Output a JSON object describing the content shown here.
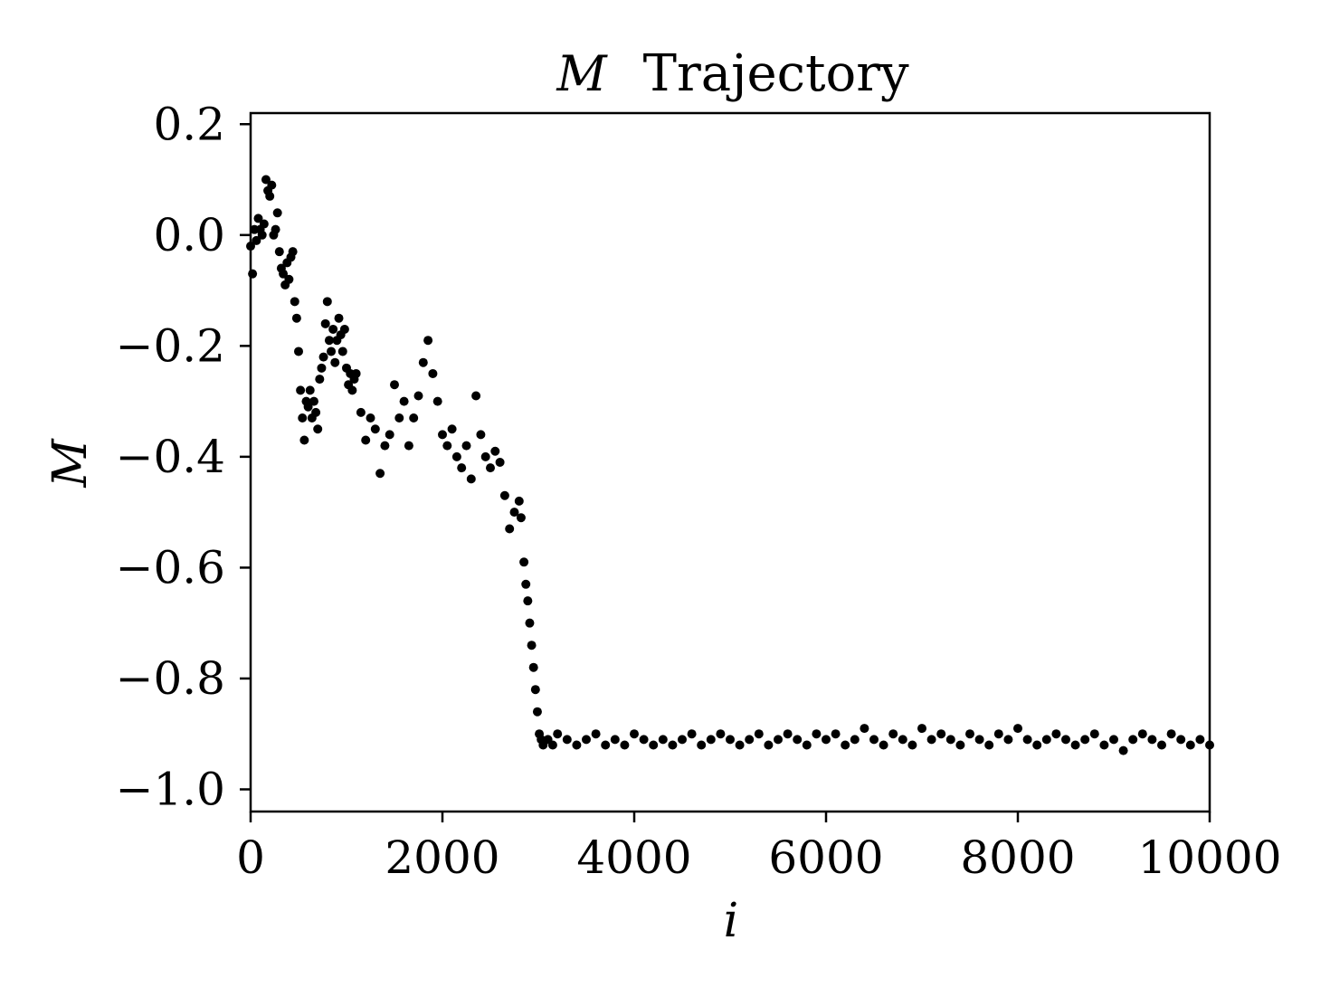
{
  "chart_data": {
    "type": "scatter",
    "title_math": "M",
    "title_text": "Trajectory",
    "xlabel": "i",
    "ylabel": "M",
    "xlim": [
      0,
      10000
    ],
    "ylim": [
      -1.04,
      0.22
    ],
    "xticks": [
      0,
      2000,
      4000,
      6000,
      8000,
      10000
    ],
    "xtick_labels": [
      "0",
      "2000",
      "4000",
      "6000",
      "8000",
      "10000"
    ],
    "yticks": [
      0.2,
      0.0,
      -0.2,
      -0.4,
      -0.6,
      -0.8,
      -1.0
    ],
    "ytick_labels": [
      "0.2",
      "0.0",
      "−0.2",
      "−0.4",
      "−0.6",
      "−0.8",
      "−1.0"
    ],
    "marker_color": "#000000",
    "grid": false,
    "legend": "none",
    "points": [
      [
        0,
        -0.02
      ],
      [
        20,
        -0.07
      ],
      [
        40,
        0.01
      ],
      [
        60,
        -0.01
      ],
      [
        80,
        0.03
      ],
      [
        100,
        0.01
      ],
      [
        120,
        0.0
      ],
      [
        140,
        0.02
      ],
      [
        160,
        0.1
      ],
      [
        180,
        0.08
      ],
      [
        200,
        0.07
      ],
      [
        220,
        0.09
      ],
      [
        240,
        0.0
      ],
      [
        260,
        0.01
      ],
      [
        280,
        0.04
      ],
      [
        300,
        -0.03
      ],
      [
        320,
        -0.06
      ],
      [
        340,
        -0.07
      ],
      [
        360,
        -0.09
      ],
      [
        380,
        -0.05
      ],
      [
        400,
        -0.08
      ],
      [
        420,
        -0.04
      ],
      [
        440,
        -0.03
      ],
      [
        460,
        -0.12
      ],
      [
        480,
        -0.15
      ],
      [
        500,
        -0.21
      ],
      [
        520,
        -0.28
      ],
      [
        540,
        -0.33
      ],
      [
        560,
        -0.37
      ],
      [
        580,
        -0.3
      ],
      [
        600,
        -0.31
      ],
      [
        620,
        -0.28
      ],
      [
        640,
        -0.33
      ],
      [
        660,
        -0.3
      ],
      [
        680,
        -0.32
      ],
      [
        700,
        -0.35
      ],
      [
        720,
        -0.26
      ],
      [
        740,
        -0.24
      ],
      [
        760,
        -0.22
      ],
      [
        780,
        -0.16
      ],
      [
        800,
        -0.12
      ],
      [
        820,
        -0.19
      ],
      [
        840,
        -0.21
      ],
      [
        860,
        -0.17
      ],
      [
        880,
        -0.23
      ],
      [
        900,
        -0.19
      ],
      [
        920,
        -0.15
      ],
      [
        940,
        -0.18
      ],
      [
        960,
        -0.21
      ],
      [
        980,
        -0.17
      ],
      [
        1000,
        -0.24
      ],
      [
        1020,
        -0.27
      ],
      [
        1040,
        -0.25
      ],
      [
        1060,
        -0.28
      ],
      [
        1080,
        -0.26
      ],
      [
        1100,
        -0.25
      ],
      [
        1150,
        -0.32
      ],
      [
        1200,
        -0.37
      ],
      [
        1250,
        -0.33
      ],
      [
        1300,
        -0.35
      ],
      [
        1350,
        -0.43
      ],
      [
        1400,
        -0.38
      ],
      [
        1450,
        -0.36
      ],
      [
        1500,
        -0.27
      ],
      [
        1550,
        -0.33
      ],
      [
        1600,
        -0.3
      ],
      [
        1650,
        -0.38
      ],
      [
        1700,
        -0.33
      ],
      [
        1750,
        -0.29
      ],
      [
        1800,
        -0.23
      ],
      [
        1850,
        -0.19
      ],
      [
        1900,
        -0.25
      ],
      [
        1950,
        -0.3
      ],
      [
        2000,
        -0.36
      ],
      [
        2050,
        -0.38
      ],
      [
        2100,
        -0.35
      ],
      [
        2150,
        -0.4
      ],
      [
        2200,
        -0.42
      ],
      [
        2250,
        -0.38
      ],
      [
        2300,
        -0.44
      ],
      [
        2350,
        -0.29
      ],
      [
        2400,
        -0.36
      ],
      [
        2450,
        -0.4
      ],
      [
        2500,
        -0.42
      ],
      [
        2550,
        -0.39
      ],
      [
        2600,
        -0.41
      ],
      [
        2650,
        -0.47
      ],
      [
        2700,
        -0.53
      ],
      [
        2750,
        -0.5
      ],
      [
        2800,
        -0.48
      ],
      [
        2820,
        -0.51
      ],
      [
        2850,
        -0.59
      ],
      [
        2870,
        -0.63
      ],
      [
        2890,
        -0.66
      ],
      [
        2910,
        -0.7
      ],
      [
        2930,
        -0.74
      ],
      [
        2950,
        -0.78
      ],
      [
        2970,
        -0.82
      ],
      [
        2990,
        -0.86
      ],
      [
        3010,
        -0.9
      ],
      [
        3030,
        -0.91
      ],
      [
        3050,
        -0.92
      ],
      [
        3100,
        -0.91
      ],
      [
        3150,
        -0.92
      ],
      [
        3200,
        -0.9
      ],
      [
        3300,
        -0.91
      ],
      [
        3400,
        -0.92
      ],
      [
        3500,
        -0.91
      ],
      [
        3600,
        -0.9
      ],
      [
        3700,
        -0.92
      ],
      [
        3800,
        -0.91
      ],
      [
        3900,
        -0.92
      ],
      [
        4000,
        -0.9
      ],
      [
        4100,
        -0.91
      ],
      [
        4200,
        -0.92
      ],
      [
        4300,
        -0.91
      ],
      [
        4400,
        -0.92
      ],
      [
        4500,
        -0.91
      ],
      [
        4600,
        -0.9
      ],
      [
        4700,
        -0.92
      ],
      [
        4800,
        -0.91
      ],
      [
        4900,
        -0.9
      ],
      [
        5000,
        -0.91
      ],
      [
        5100,
        -0.92
      ],
      [
        5200,
        -0.91
      ],
      [
        5300,
        -0.9
      ],
      [
        5400,
        -0.92
      ],
      [
        5500,
        -0.91
      ],
      [
        5600,
        -0.9
      ],
      [
        5700,
        -0.91
      ],
      [
        5800,
        -0.92
      ],
      [
        5900,
        -0.9
      ],
      [
        6000,
        -0.91
      ],
      [
        6100,
        -0.9
      ],
      [
        6200,
        -0.92
      ],
      [
        6300,
        -0.91
      ],
      [
        6400,
        -0.89
      ],
      [
        6500,
        -0.91
      ],
      [
        6600,
        -0.92
      ],
      [
        6700,
        -0.9
      ],
      [
        6800,
        -0.91
      ],
      [
        6900,
        -0.92
      ],
      [
        7000,
        -0.89
      ],
      [
        7100,
        -0.91
      ],
      [
        7200,
        -0.9
      ],
      [
        7300,
        -0.91
      ],
      [
        7400,
        -0.92
      ],
      [
        7500,
        -0.9
      ],
      [
        7600,
        -0.91
      ],
      [
        7700,
        -0.92
      ],
      [
        7800,
        -0.9
      ],
      [
        7900,
        -0.91
      ],
      [
        8000,
        -0.89
      ],
      [
        8100,
        -0.91
      ],
      [
        8200,
        -0.92
      ],
      [
        8300,
        -0.91
      ],
      [
        8400,
        -0.9
      ],
      [
        8500,
        -0.91
      ],
      [
        8600,
        -0.92
      ],
      [
        8700,
        -0.91
      ],
      [
        8800,
        -0.9
      ],
      [
        8900,
        -0.92
      ],
      [
        9000,
        -0.91
      ],
      [
        9100,
        -0.93
      ],
      [
        9200,
        -0.91
      ],
      [
        9300,
        -0.9
      ],
      [
        9400,
        -0.91
      ],
      [
        9500,
        -0.92
      ],
      [
        9600,
        -0.9
      ],
      [
        9700,
        -0.91
      ],
      [
        9800,
        -0.92
      ],
      [
        9900,
        -0.91
      ],
      [
        10000,
        -0.92
      ]
    ]
  }
}
